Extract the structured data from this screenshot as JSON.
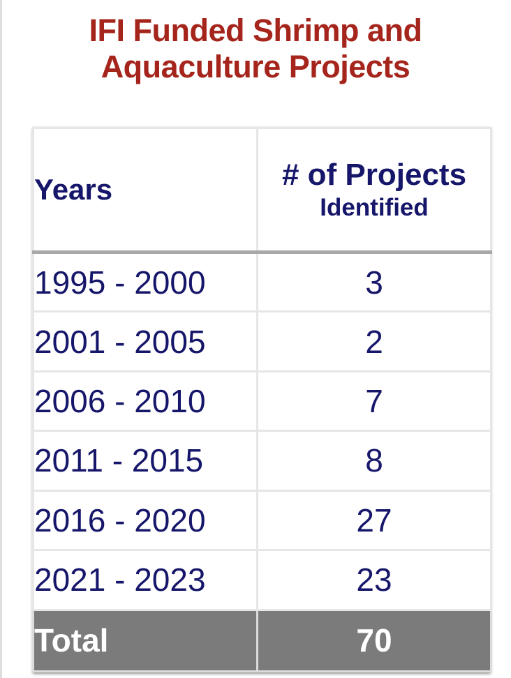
{
  "title_lines": [
    "IFI Funded Shrimp and",
    "Aquaculture Projects"
  ],
  "colors": {
    "title": "#a5241b",
    "text": "#16166a",
    "total_background": "#7b7b7b",
    "total_text": "#ffffff"
  },
  "chart_data": {
    "type": "table",
    "title": "IFI Funded Shrimp and Aquaculture Projects",
    "columns": [
      "Years",
      "# of Projects Identified"
    ],
    "header": {
      "years": "Years",
      "projects_main": "# of Projects",
      "projects_sub": "Identified"
    },
    "rows": [
      {
        "years": "1995 - 2000",
        "projects": "3"
      },
      {
        "years": "2001 - 2005",
        "projects": "2"
      },
      {
        "years": "2006 - 2010",
        "projects": "7"
      },
      {
        "years": "2011 - 2015",
        "projects": "8"
      },
      {
        "years": "2016 - 2020",
        "projects": "27"
      },
      {
        "years": "2021 - 2023",
        "projects": "23"
      }
    ],
    "total": {
      "label": "Total",
      "value": "70"
    }
  }
}
